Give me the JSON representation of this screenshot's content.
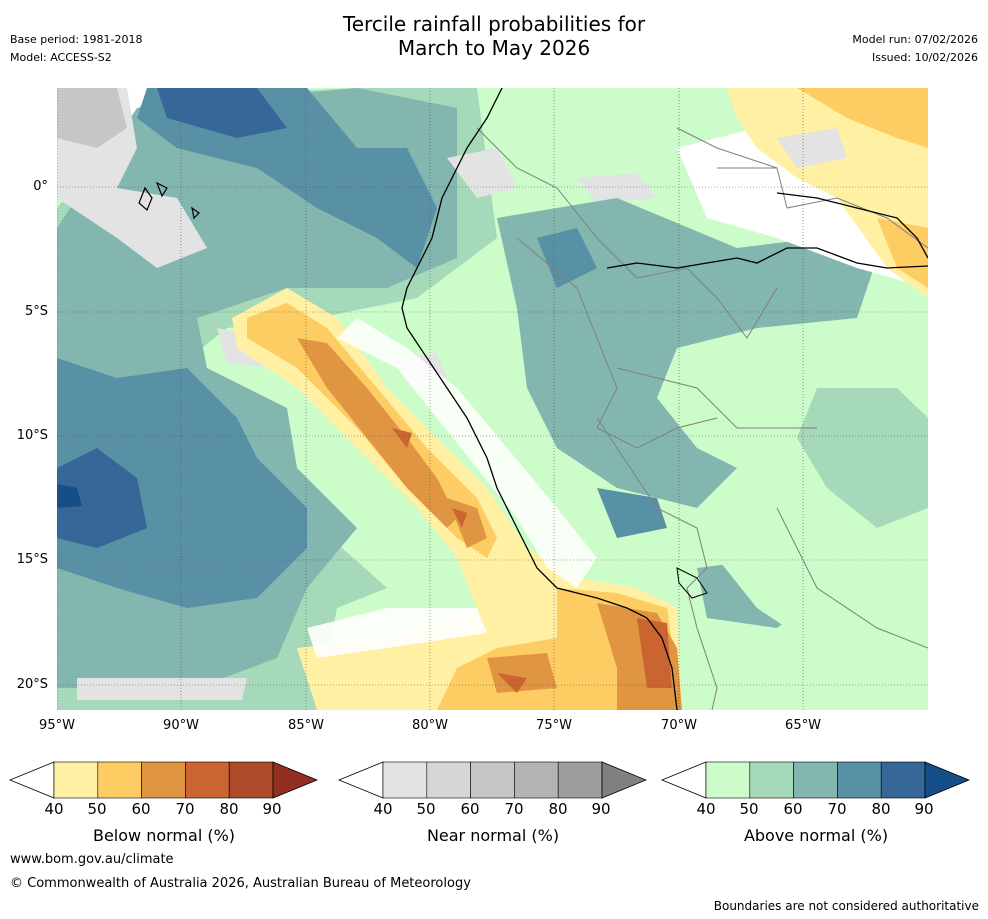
{
  "header": {
    "title_line1": "Tercile rainfall probabilities for",
    "title_line2": "March to May 2026",
    "base_period": "Base period: 1981-2018",
    "model": "Model: ACCESS-S2",
    "model_run": "Model run: 07/02/2026",
    "issued": "Issued: 10/02/2026"
  },
  "map": {
    "lat_labels": [
      "0°",
      "5°S",
      "10°S",
      "15°S",
      "20°S"
    ],
    "lon_labels": [
      "95°W",
      "90°W",
      "85°W",
      "80°W",
      "75°W",
      "70°W",
      "65°W"
    ],
    "colors": {
      "above": [
        "#ccfcca",
        "#a6d9b9",
        "#82b6ae",
        "#5890a5",
        "#356798",
        "#164f88"
      ],
      "below": [
        "#fff0a3",
        "#fdcc63",
        "#e09542",
        "#ca6430",
        "#ac4a2a",
        "#922f21"
      ],
      "near": [
        "#e3e3e3",
        "#d6d6d6",
        "#c6c6c6",
        "#b3b3b3",
        "#9e9e9e",
        "#808080"
      ],
      "coastline": "#000000",
      "border": "#808080"
    }
  },
  "colorbars": [
    {
      "label": "Below normal (%)",
      "ticks": [
        "40",
        "50",
        "60",
        "70",
        "80",
        "90"
      ]
    },
    {
      "label": "Near normal (%)",
      "ticks": [
        "40",
        "50",
        "60",
        "70",
        "80",
        "90"
      ]
    },
    {
      "label": "Above normal (%)",
      "ticks": [
        "40",
        "50",
        "60",
        "70",
        "80",
        "90"
      ]
    }
  ],
  "footer": {
    "website": "www.bom.gov.au/climate",
    "copyright": "© Commonwealth of Australia 2026, Australian Bureau of Meteorology",
    "disclaimer": "Boundaries are not considered authoritative"
  }
}
